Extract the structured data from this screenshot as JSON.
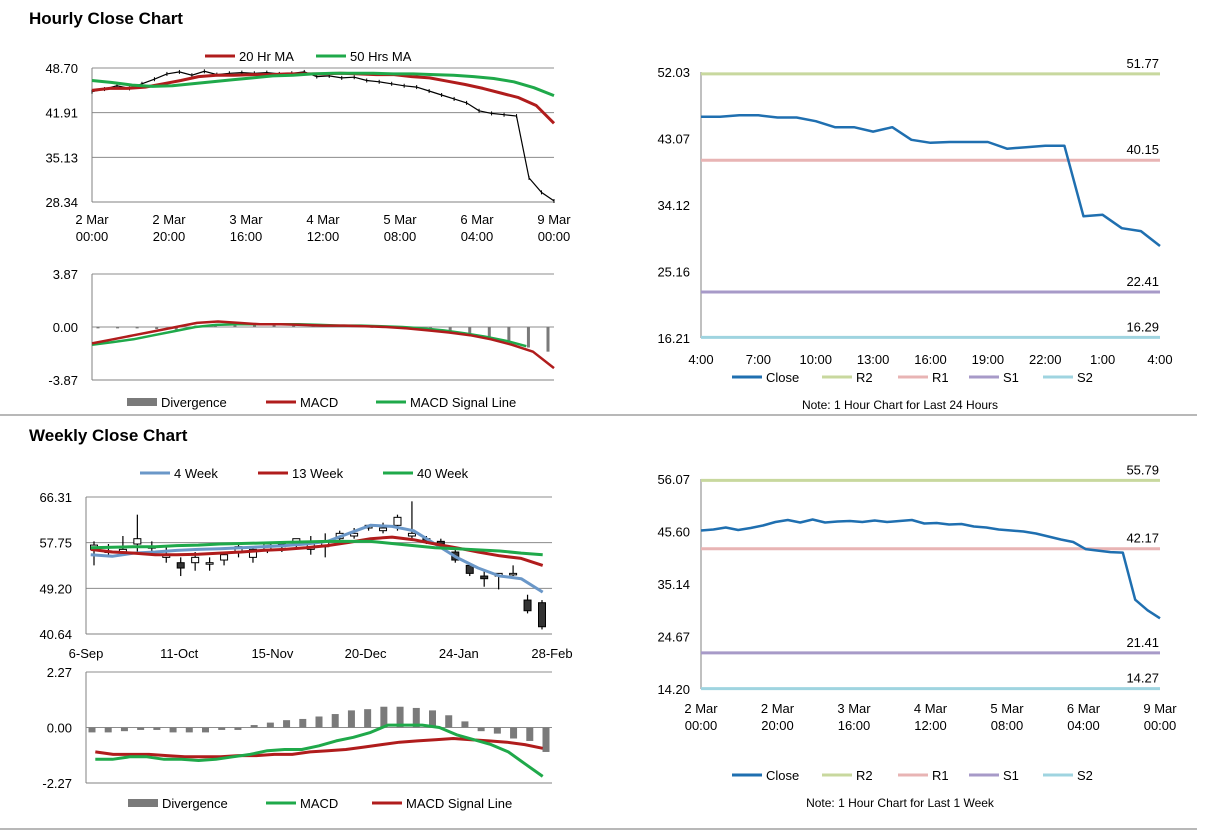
{
  "sections": {
    "hourly_title": "Hourly Close Chart",
    "weekly_title": "Weekly Close Chart"
  },
  "colors": {
    "ma20": "#b01c1c",
    "ma50": "#1fa94a",
    "close": "#1f6fb0",
    "r2": "#c8d89e",
    "r1": "#e8b4b4",
    "s1": "#a79ac8",
    "s2": "#9fd4e0",
    "week4": "#6a97c8",
    "week13": "#b01c1c",
    "week40": "#1fa94a",
    "divergence": "#7a7a7a",
    "grid": "#8c8c8c"
  },
  "chart_data": [
    {
      "id": "hourly_price",
      "type": "line",
      "legend": [
        "20 Hr MA",
        "50 Hrs MA"
      ],
      "yticks": [
        "48.70",
        "41.91",
        "35.13",
        "28.34"
      ],
      "ylim": [
        28.34,
        48.7
      ],
      "xticks": [
        [
          "2 Mar",
          "00:00"
        ],
        [
          "2 Mar",
          "20:00"
        ],
        [
          "3 Mar",
          "16:00"
        ],
        [
          "4 Mar",
          "12:00"
        ],
        [
          "5 Mar",
          "08:00"
        ],
        [
          "6 Mar",
          "04:00"
        ],
        [
          "9 Mar",
          "00:00"
        ]
      ],
      "series": [
        {
          "name": "Price",
          "values": [
            45.1,
            45.5,
            46.0,
            45.6,
            46.3,
            47.0,
            47.8,
            48.1,
            47.6,
            48.2,
            47.7,
            47.9,
            48.0,
            47.9,
            48.0,
            47.8,
            47.9,
            48.1,
            47.4,
            47.5,
            47.2,
            47.3,
            46.8,
            46.6,
            46.3,
            46.0,
            45.8,
            45.2,
            44.6,
            44.0,
            43.4,
            42.2,
            41.8,
            41.6,
            41.4,
            32.0,
            29.8,
            28.5
          ]
        },
        {
          "name": "20 Hr MA",
          "values": [
            45.3,
            45.6,
            45.6,
            45.8,
            46.3,
            46.8,
            47.4,
            47.6,
            47.6,
            47.7,
            47.7,
            47.8,
            47.8,
            47.8,
            47.9,
            47.8,
            47.7,
            47.7,
            47.4,
            47.2,
            46.7,
            46.2,
            45.6,
            44.9,
            44.2,
            43.0,
            40.3
          ]
        },
        {
          "name": "50 Hrs MA",
          "values": [
            46.8,
            46.5,
            46.1,
            45.9,
            46.0,
            46.3,
            46.6,
            46.9,
            47.2,
            47.5,
            47.6,
            47.8,
            47.9,
            47.9,
            47.9,
            47.8,
            47.8,
            47.7,
            47.6,
            47.4,
            47.1,
            46.6,
            45.7,
            44.5
          ]
        }
      ]
    },
    {
      "id": "hourly_macd",
      "type": "line",
      "legend": [
        "Divergence",
        "MACD",
        "MACD Signal Line"
      ],
      "yticks": [
        "3.87",
        "0.00",
        "-3.87"
      ],
      "ylim": [
        -3.87,
        3.87
      ],
      "series": [
        {
          "name": "MACD",
          "values": [
            -1.2,
            -0.9,
            -0.6,
            -0.3,
            0.0,
            0.3,
            0.4,
            0.3,
            0.2,
            0.2,
            0.15,
            0.1,
            0.1,
            0.05,
            0.0,
            -0.1,
            -0.25,
            -0.4,
            -0.6,
            -0.9,
            -1.3,
            -1.8,
            -3.0
          ]
        },
        {
          "name": "MACD Signal Line",
          "values": [
            -1.3,
            -1.1,
            -0.9,
            -0.6,
            -0.3,
            0.0,
            0.15,
            0.2,
            0.2,
            0.2,
            0.2,
            0.15,
            0.1,
            0.1,
            0.05,
            0.0,
            -0.1,
            -0.25,
            -0.45,
            -0.7,
            -1.0,
            -1.4
          ]
        },
        {
          "name": "Divergence",
          "values": [
            -0.1,
            -0.1,
            -0.1,
            -0.15,
            -0.2,
            0.1,
            0.2,
            0.25,
            0.2,
            0.2,
            0.15,
            0.1,
            0.1,
            0.05,
            0.0,
            -0.05,
            -0.1,
            -0.2,
            -0.3,
            -0.5,
            -0.8,
            -1.0,
            -1.5,
            -1.8
          ]
        }
      ]
    },
    {
      "id": "hourly_levels",
      "type": "line",
      "legend": [
        "Close",
        "R2",
        "R1",
        "S1",
        "S2"
      ],
      "note": "Note: 1 Hour Chart for Last 24 Hours",
      "yticks": [
        "52.03",
        "43.07",
        "34.12",
        "25.16",
        "16.21"
      ],
      "ylim": [
        16.21,
        52.03
      ],
      "xticks": [
        "4:00",
        "7:00",
        "10:00",
        "13:00",
        "16:00",
        "19:00",
        "22:00",
        "1:00",
        "4:00"
      ],
      "levels": {
        "R2": "51.77",
        "R1": "40.15",
        "S1": "22.41",
        "S2": "16.29"
      },
      "series": [
        {
          "name": "Close",
          "values": [
            46.0,
            46.0,
            46.2,
            46.2,
            45.9,
            45.9,
            45.4,
            44.6,
            44.6,
            44.0,
            44.6,
            42.9,
            42.5,
            42.6,
            42.6,
            42.6,
            41.7,
            41.9,
            42.1,
            42.1,
            32.6,
            32.8,
            31.0,
            30.6,
            28.6
          ]
        }
      ]
    },
    {
      "id": "weekly_price",
      "type": "candlestick",
      "legend": [
        "4 Week",
        "13 Week",
        "40 Week"
      ],
      "yticks": [
        "66.31",
        "57.75",
        "49.20",
        "40.64"
      ],
      "ylim": [
        40.64,
        66.31
      ],
      "xticks": [
        "6-Sep",
        "11-Oct",
        "15-Nov",
        "20-Dec",
        "24-Jan",
        "28-Feb"
      ],
      "candles": [
        [
          56.5,
          57.3,
          58.0,
          53.5
        ],
        [
          56.2,
          56.0,
          57.5,
          55.0
        ],
        [
          56.0,
          56.5,
          59.0,
          55.5
        ],
        [
          57.5,
          58.5,
          63.0,
          56.0
        ],
        [
          57.0,
          56.8,
          58.0,
          55.5
        ],
        [
          55.0,
          55.5,
          57.0,
          54.0
        ],
        [
          54.0,
          53.0,
          55.0,
          51.5
        ],
        [
          54.0,
          55.0,
          56.0,
          52.5
        ],
        [
          54.0,
          54.0,
          55.0,
          52.5
        ],
        [
          54.5,
          55.5,
          56.0,
          53.5
        ],
        [
          56.0,
          57.0,
          57.5,
          55.0
        ],
        [
          55.0,
          56.5,
          57.0,
          54.0
        ],
        [
          56.5,
          57.5,
          57.8,
          55.8
        ],
        [
          57.0,
          57.5,
          58.0,
          56.0
        ],
        [
          57.8,
          58.5,
          58.5,
          56.5
        ],
        [
          56.5,
          57.5,
          59.0,
          55.5
        ],
        [
          57.0,
          58.0,
          59.5,
          55.0
        ],
        [
          58.5,
          59.5,
          60.0,
          58.0
        ],
        [
          59.0,
          59.5,
          60.5,
          58.5
        ],
        [
          60.5,
          61.0,
          61.0,
          60.0
        ],
        [
          60.0,
          60.5,
          61.5,
          59.5
        ],
        [
          61.0,
          62.5,
          63.0,
          60.0
        ],
        [
          59.0,
          59.5,
          65.5,
          58.5
        ],
        [
          58.5,
          58.0,
          59.0,
          57.5
        ],
        [
          58.0,
          57.5,
          58.5,
          56.5
        ],
        [
          56.0,
          54.5,
          56.5,
          54.0
        ],
        [
          53.5,
          52.0,
          54.0,
          51.5
        ],
        [
          51.5,
          51.0,
          52.5,
          49.5
        ],
        [
          51.5,
          52.0,
          52.0,
          49.0
        ],
        [
          52.0,
          52.0,
          53.5,
          51.5
        ],
        [
          47.0,
          45.0,
          48.0,
          44.5
        ],
        [
          46.5,
          42.0,
          47.0,
          41.5
        ]
      ],
      "series": [
        {
          "name": "4 Week",
          "values": [
            55.5,
            55.2,
            55.8,
            56.0,
            56.3,
            56.5,
            56.6,
            56.8,
            57.0,
            57.2,
            57.5,
            58.0,
            59.5,
            61.0,
            60.8,
            60.0,
            57.5,
            55.0,
            53.0,
            51.5,
            51.0,
            48.5
          ]
        },
        {
          "name": "13 Week",
          "values": [
            56.5,
            56.0,
            55.8,
            55.5,
            55.5,
            55.6,
            55.8,
            56.0,
            56.3,
            56.5,
            56.8,
            57.2,
            57.8,
            58.5,
            58.8,
            58.3,
            57.5,
            56.8,
            56.0,
            55.3,
            54.8,
            53.5
          ]
        },
        {
          "name": "40 Week",
          "values": [
            56.8,
            56.9,
            57.0,
            57.0,
            57.2,
            57.3,
            57.5,
            57.6,
            57.7,
            57.8,
            57.9,
            58.0,
            58.0,
            58.0,
            57.6,
            57.2,
            56.8,
            56.6,
            56.4,
            56.2,
            55.8,
            55.5
          ]
        }
      ]
    },
    {
      "id": "weekly_macd",
      "type": "line",
      "legend": [
        "Divergence",
        "MACD",
        "MACD Signal Line"
      ],
      "yticks": [
        "2.27",
        "0.00",
        "-2.27"
      ],
      "ylim": [
        -2.27,
        2.27
      ],
      "series": [
        {
          "name": "MACD",
          "values": [
            -1.3,
            -1.3,
            -1.2,
            -1.2,
            -1.3,
            -1.3,
            -1.35,
            -1.3,
            -1.2,
            -1.1,
            -0.95,
            -0.9,
            -0.9,
            -0.75,
            -0.55,
            -0.4,
            -0.2,
            0.1,
            0.1,
            0.1,
            0.0,
            -0.3,
            -0.5,
            -0.7,
            -1.0,
            -1.5,
            -2.0
          ]
        },
        {
          "name": "MACD Signal Line",
          "values": [
            -1.0,
            -1.1,
            -1.1,
            -1.1,
            -1.15,
            -1.2,
            -1.2,
            -1.2,
            -1.15,
            -1.15,
            -1.1,
            -1.1,
            -1.0,
            -0.95,
            -0.9,
            -0.8,
            -0.7,
            -0.6,
            -0.55,
            -0.5,
            -0.45,
            -0.5,
            -0.55,
            -0.6,
            -0.7,
            -0.85
          ]
        },
        {
          "name": "Divergence",
          "values": [
            -0.2,
            -0.2,
            -0.15,
            -0.1,
            -0.1,
            -0.2,
            -0.2,
            -0.2,
            -0.1,
            -0.1,
            0.1,
            0.2,
            0.3,
            0.35,
            0.45,
            0.55,
            0.7,
            0.75,
            0.85,
            0.85,
            0.8,
            0.7,
            0.5,
            0.25,
            -0.15,
            -0.25,
            -0.45,
            -0.55,
            -1.0
          ]
        }
      ]
    },
    {
      "id": "weekly_levels",
      "type": "line",
      "legend": [
        "Close",
        "R2",
        "R1",
        "S1",
        "S2"
      ],
      "note": "Note: 1 Hour Chart for Last 1 Week",
      "yticks": [
        "56.07",
        "45.60",
        "35.14",
        "24.67",
        "14.20"
      ],
      "ylim": [
        14.2,
        56.07
      ],
      "xticks": [
        [
          "2 Mar",
          "00:00"
        ],
        [
          "2 Mar",
          "20:00"
        ],
        [
          "3 Mar",
          "16:00"
        ],
        [
          "4 Mar",
          "12:00"
        ],
        [
          "5 Mar",
          "08:00"
        ],
        [
          "6 Mar",
          "04:00"
        ],
        [
          "9 Mar",
          "00:00"
        ]
      ],
      "levels": {
        "R2": "55.79",
        "R1": "42.17",
        "S1": "21.41",
        "S2": "14.27"
      },
      "series": [
        {
          "name": "Close",
          "values": [
            45.8,
            46.0,
            46.4,
            45.9,
            46.3,
            46.8,
            47.5,
            47.9,
            47.4,
            48.0,
            47.4,
            47.6,
            47.7,
            47.5,
            47.8,
            47.5,
            47.7,
            47.9,
            47.2,
            47.3,
            47.0,
            47.1,
            46.6,
            46.4,
            46.0,
            45.8,
            45.6,
            45.2,
            44.6,
            44.0,
            43.5,
            42.1,
            41.8,
            41.5,
            41.4,
            32.0,
            29.9,
            28.3
          ]
        }
      ]
    }
  ]
}
